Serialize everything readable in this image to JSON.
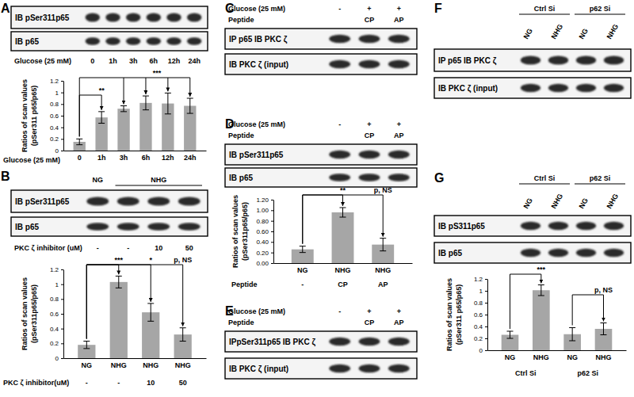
{
  "chart_data": [
    {
      "type": "bar",
      "ylabel": [
        "Ratios of scan values",
        "(pSer311 p65/p65)"
      ],
      "xlabel": "Glucose (25 mM)",
      "categories": [
        "0",
        "1h",
        "3h",
        "6h",
        "12h",
        "24h"
      ],
      "values": [
        0.15,
        0.57,
        0.72,
        0.82,
        0.81,
        0.77
      ],
      "errors": [
        0.05,
        0.1,
        0.05,
        0.12,
        0.18,
        0.13
      ],
      "color": "#a6a6a6",
      "ylim": [
        0,
        1.2
      ],
      "yticks": [
        0,
        0.2,
        0.4,
        0.6,
        0.8,
        1,
        1.2
      ],
      "annotations": [
        "**",
        "***"
      ]
    },
    {
      "type": "bar",
      "ylabel": [
        "Ratios of scan values",
        "(pSer311p65/p65)"
      ],
      "categories": [
        "NG",
        "NHG",
        "NHG",
        "NHG"
      ],
      "subcategories": {
        "label": "PKC ζ inhibitor(uM)",
        "values": [
          "-",
          "-",
          "10",
          "50"
        ]
      },
      "values": [
        0.18,
        1.03,
        0.62,
        0.32
      ],
      "errors": [
        0.05,
        0.08,
        0.12,
        0.09
      ],
      "color": "#a6a6a6",
      "ylim": [
        0,
        1.2
      ],
      "yticks": [
        0,
        0.2,
        0.4,
        0.6,
        0.8,
        1,
        1.2
      ],
      "annotations": [
        "***",
        "*",
        "p, NS"
      ]
    },
    {
      "type": "bar",
      "ylabel": [
        "Ratios of scan values",
        "(pSer311p65/p65)"
      ],
      "categories": [
        "NG",
        "NHG",
        "NHG"
      ],
      "subcategories": {
        "label": "Peptide",
        "values": [
          "-",
          "CP",
          "AP"
        ]
      },
      "values": [
        0.26,
        0.96,
        0.35
      ],
      "errors": [
        0.06,
        0.09,
        0.12
      ],
      "color": "#a6a6a6",
      "ylim": [
        0,
        1.2
      ],
      "yticks": [
        {
          "value": 0,
          "label": "0.00"
        },
        {
          "value": 0.2,
          "label": "0.20"
        },
        {
          "value": 0.4,
          "label": "0.40"
        },
        {
          "value": 0.6,
          "label": "0.60"
        },
        {
          "value": 0.8,
          "label": "0.80"
        },
        {
          "value": 1,
          "label": "1.00"
        },
        {
          "value": 1.2,
          "label": "1.20"
        }
      ],
      "annotations": [
        "**",
        "p, NS"
      ]
    },
    {
      "type": "bar",
      "ylabel": [
        "Ratios of scan values",
        "(pSer311 p65/p65)"
      ],
      "categories": [
        "NG",
        "NHG",
        "NG",
        "NHG"
      ],
      "subcategories": {
        "values": [
          "Ctrl Si",
          null,
          "p62 Si",
          null
        ]
      },
      "values": [
        0.26,
        1.01,
        0.27,
        0.36
      ],
      "errors": [
        0.06,
        0.09,
        0.11,
        0.1
      ],
      "color": "#a6a6a6",
      "ylim": [
        0,
        1.2
      ],
      "yticks": [
        0,
        0.2,
        0.4,
        0.6,
        0.8,
        1,
        1.2
      ],
      "annotations": [
        "***",
        "p, NS"
      ]
    }
  ],
  "panels": [
    {
      "letter": "A",
      "blots": [
        "IB pSer311p65",
        "IB p65"
      ],
      "above": [],
      "below": [
        {
          "label": "Glucose (25 mM)",
          "lanes": [
            "0",
            "1h",
            "3h",
            "6h",
            "12h",
            "24h"
          ]
        }
      ]
    },
    {
      "letter": "B",
      "blots": [
        "IB pSer311p65",
        "IB p65"
      ],
      "above": [
        {
          "lanes": [
            "NG",
            "NHG",
            null,
            null
          ]
        }
      ],
      "below": [
        {
          "label": "PKC ζ inhibitor (uM)",
          "lanes": [
            "-",
            "-",
            "10",
            "50"
          ]
        }
      ]
    },
    {
      "letter": "C",
      "blots": [
        "IP p65 IB PKC ζ",
        "IB PKC ζ (input)"
      ],
      "above": [
        {
          "label": "Glucose (25 mM)",
          "lanes": [
            "-",
            "+",
            "+"
          ]
        },
        {
          "label": "Peptide",
          "lanes": [
            null,
            "CP",
            "AP"
          ]
        }
      ],
      "below": []
    },
    {
      "letter": "D",
      "blots": [
        "IB pSer311p65",
        "IB p65"
      ],
      "above": [
        {
          "label": "Glucose (25 mM)",
          "lanes": [
            "-",
            "+",
            "+"
          ]
        },
        {
          "label": "Peptide",
          "lanes": [
            null,
            "CP",
            "AP"
          ]
        }
      ],
      "below": []
    },
    {
      "letter": "E",
      "blots": [
        "IPpSer311p65 IB PKC ζ",
        "IB PKC ζ (input)"
      ],
      "above": [
        {
          "label": "Glucose (25 mM)",
          "lanes": [
            "-",
            "+",
            "+"
          ]
        },
        {
          "label": "Peptide",
          "lanes": [
            null,
            "CP",
            "AP"
          ]
        }
      ],
      "below": []
    },
    {
      "letter": "F",
      "blots": [
        "IP p65 IB PKC ζ",
        "IB PKC ζ (input)"
      ],
      "above": [
        {
          "lanes": [
            "Ctrl Si",
            null,
            "p62 Si",
            null
          ]
        },
        {
          "lanes": [
            "NG",
            "NHG",
            "NG",
            "NHG"
          ]
        }
      ],
      "below": []
    },
    {
      "letter": "G",
      "blots": [
        "IB pS311p65",
        "IB p65"
      ],
      "above": [
        {
          "lanes": [
            "Ctrl Si",
            null,
            "p62 Si",
            null
          ]
        },
        {
          "lanes": [
            "NG",
            "NHG",
            "NG",
            "NHG"
          ]
        }
      ],
      "below": []
    }
  ]
}
